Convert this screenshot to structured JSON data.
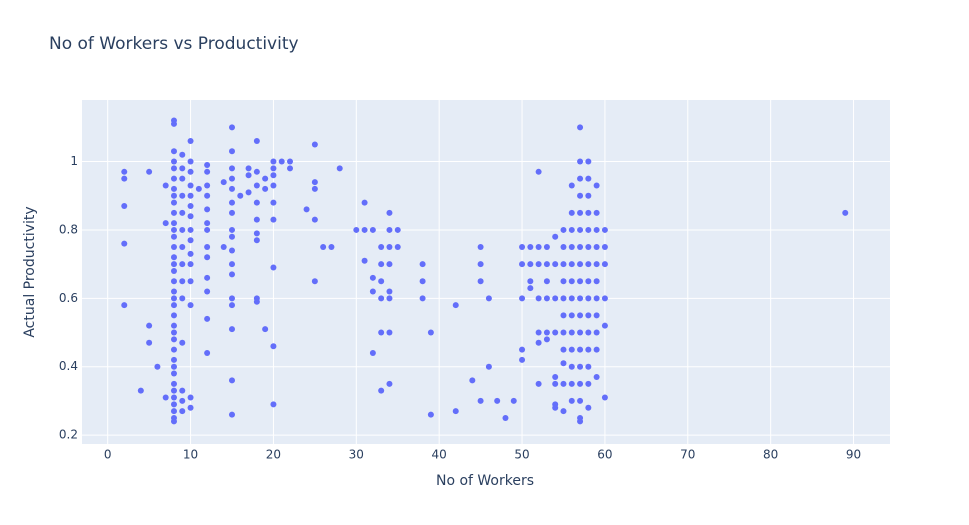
{
  "chart_data": {
    "type": "scatter",
    "title": "No of Workers vs Productivity",
    "x_label": "No of Workers",
    "y_label": "Actual Productivity",
    "color": "#636efa",
    "grid": true,
    "xlim": [
      -3.1,
      94.4
    ],
    "ylim": [
      0.174,
      1.18
    ],
    "xticks": [
      0,
      10,
      20,
      30,
      40,
      50,
      60,
      70,
      80,
      90
    ],
    "yticks": [
      0.2,
      0.4,
      0.6,
      0.8,
      1
    ],
    "x": [
      2,
      2,
      2,
      2,
      2,
      4,
      5,
      5,
      5,
      6,
      7,
      7,
      7,
      8,
      8,
      8,
      8,
      8,
      8,
      8,
      8,
      8,
      8,
      8,
      8,
      8,
      8,
      8,
      8,
      8,
      8,
      8,
      8,
      8,
      8,
      8,
      8,
      8,
      8,
      8,
      8,
      8,
      8,
      8,
      8,
      8,
      8,
      8,
      8,
      9,
      9,
      9,
      9,
      9,
      9,
      9,
      9,
      9,
      9,
      9,
      9,
      9,
      9,
      10,
      10,
      10,
      10,
      10,
      10,
      10,
      10,
      10,
      10,
      10,
      10,
      10,
      10,
      10,
      11,
      12,
      12,
      12,
      12,
      12,
      12,
      12,
      12,
      12,
      12,
      12,
      12,
      12,
      14,
      14,
      15,
      15,
      15,
      15,
      15,
      15,
      15,
      15,
      15,
      15,
      15,
      15,
      15,
      15,
      15,
      15,
      15,
      16,
      17,
      17,
      17,
      18,
      18,
      18,
      18,
      18,
      18,
      18,
      18,
      18,
      19,
      19,
      19,
      20,
      20,
      20,
      20,
      20,
      20,
      20,
      20,
      20,
      21,
      22,
      22,
      24,
      25,
      25,
      25,
      25,
      25,
      26,
      27,
      28,
      30,
      31,
      31,
      31,
      32,
      32,
      32,
      32,
      33,
      33,
      33,
      33,
      33,
      33,
      34,
      34,
      34,
      34,
      34,
      34,
      34,
      34,
      35,
      35,
      38,
      38,
      38,
      39,
      39,
      42,
      42,
      44,
      45,
      45,
      45,
      45,
      46,
      46,
      47,
      48,
      49,
      50,
      50,
      50,
      50,
      50,
      51,
      51,
      51,
      51,
      52,
      52,
      52,
      52,
      52,
      52,
      52,
      53,
      53,
      53,
      53,
      53,
      53,
      54,
      54,
      54,
      54,
      54,
      54,
      54,
      54,
      55,
      55,
      55,
      55,
      55,
      55,
      55,
      55,
      55,
      55,
      55,
      56,
      56,
      56,
      56,
      56,
      56,
      56,
      56,
      56,
      56,
      56,
      56,
      56,
      57,
      57,
      57,
      57,
      57,
      57,
      57,
      57,
      57,
      57,
      57,
      57,
      57,
      57,
      57,
      57,
      57,
      57,
      58,
      58,
      58,
      58,
      58,
      58,
      58,
      58,
      58,
      58,
      58,
      58,
      58,
      58,
      58,
      59,
      59,
      59,
      59,
      59,
      59,
      59,
      59,
      59,
      59,
      59,
      60,
      60,
      60,
      60,
      60,
      60,
      89
    ],
    "y": [
      0.97,
      0.95,
      0.87,
      0.76,
      0.58,
      0.33,
      0.97,
      0.52,
      0.47,
      0.4,
      0.93,
      0.82,
      0.31,
      1.12,
      1.11,
      1.03,
      1.0,
      0.98,
      0.95,
      0.92,
      0.9,
      0.88,
      0.85,
      0.82,
      0.8,
      0.78,
      0.75,
      0.72,
      0.7,
      0.68,
      0.65,
      0.62,
      0.6,
      0.58,
      0.55,
      0.52,
      0.5,
      0.48,
      0.45,
      0.42,
      0.4,
      0.38,
      0.35,
      0.33,
      0.31,
      0.29,
      0.27,
      0.25,
      0.24,
      1.02,
      0.98,
      0.95,
      0.9,
      0.85,
      0.8,
      0.75,
      0.7,
      0.65,
      0.6,
      0.47,
      0.33,
      0.3,
      0.27,
      1.06,
      1.0,
      0.97,
      0.93,
      0.9,
      0.87,
      0.84,
      0.8,
      0.77,
      0.73,
      0.7,
      0.65,
      0.58,
      0.31,
      0.28,
      0.92,
      0.99,
      0.97,
      0.93,
      0.9,
      0.86,
      0.82,
      0.8,
      0.75,
      0.72,
      0.66,
      0.62,
      0.54,
      0.44,
      0.94,
      0.75,
      1.1,
      1.03,
      0.98,
      0.95,
      0.92,
      0.88,
      0.85,
      0.8,
      0.78,
      0.74,
      0.7,
      0.67,
      0.6,
      0.58,
      0.51,
      0.36,
      0.26,
      0.9,
      0.98,
      0.96,
      0.91,
      1.06,
      0.97,
      0.93,
      0.88,
      0.83,
      0.79,
      0.77,
      0.6,
      0.59,
      0.95,
      0.92,
      0.51,
      1.0,
      0.98,
      0.96,
      0.93,
      0.88,
      0.83,
      0.69,
      0.46,
      0.29,
      1.0,
      1.0,
      0.98,
      0.86,
      1.05,
      0.94,
      0.92,
      0.83,
      0.65,
      0.75,
      0.75,
      0.98,
      0.8,
      0.88,
      0.8,
      0.71,
      0.8,
      0.66,
      0.62,
      0.44,
      0.75,
      0.7,
      0.65,
      0.6,
      0.5,
      0.33,
      0.85,
      0.8,
      0.75,
      0.7,
      0.62,
      0.6,
      0.5,
      0.35,
      0.8,
      0.75,
      0.7,
      0.65,
      0.6,
      0.5,
      0.26,
      0.58,
      0.27,
      0.36,
      0.75,
      0.7,
      0.65,
      0.3,
      0.6,
      0.4,
      0.3,
      0.25,
      0.3,
      0.75,
      0.7,
      0.6,
      0.45,
      0.42,
      0.75,
      0.7,
      0.65,
      0.63,
      0.97,
      0.75,
      0.7,
      0.6,
      0.5,
      0.47,
      0.35,
      0.75,
      0.7,
      0.65,
      0.6,
      0.5,
      0.48,
      0.78,
      0.7,
      0.6,
      0.5,
      0.37,
      0.35,
      0.29,
      0.28,
      0.8,
      0.75,
      0.7,
      0.65,
      0.6,
      0.55,
      0.5,
      0.45,
      0.41,
      0.35,
      0.27,
      0.93,
      0.85,
      0.8,
      0.75,
      0.7,
      0.65,
      0.6,
      0.55,
      0.5,
      0.45,
      0.4,
      0.35,
      0.3,
      1.1,
      1.0,
      0.95,
      0.9,
      0.85,
      0.8,
      0.75,
      0.7,
      0.65,
      0.6,
      0.55,
      0.5,
      0.45,
      0.4,
      0.35,
      0.3,
      0.25,
      0.24,
      1.0,
      0.95,
      0.9,
      0.85,
      0.8,
      0.75,
      0.7,
      0.65,
      0.6,
      0.55,
      0.5,
      0.45,
      0.4,
      0.35,
      0.28,
      0.93,
      0.85,
      0.8,
      0.75,
      0.7,
      0.65,
      0.6,
      0.55,
      0.5,
      0.45,
      0.37,
      0.8,
      0.75,
      0.7,
      0.6,
      0.52,
      0.31,
      0.85
    ]
  }
}
